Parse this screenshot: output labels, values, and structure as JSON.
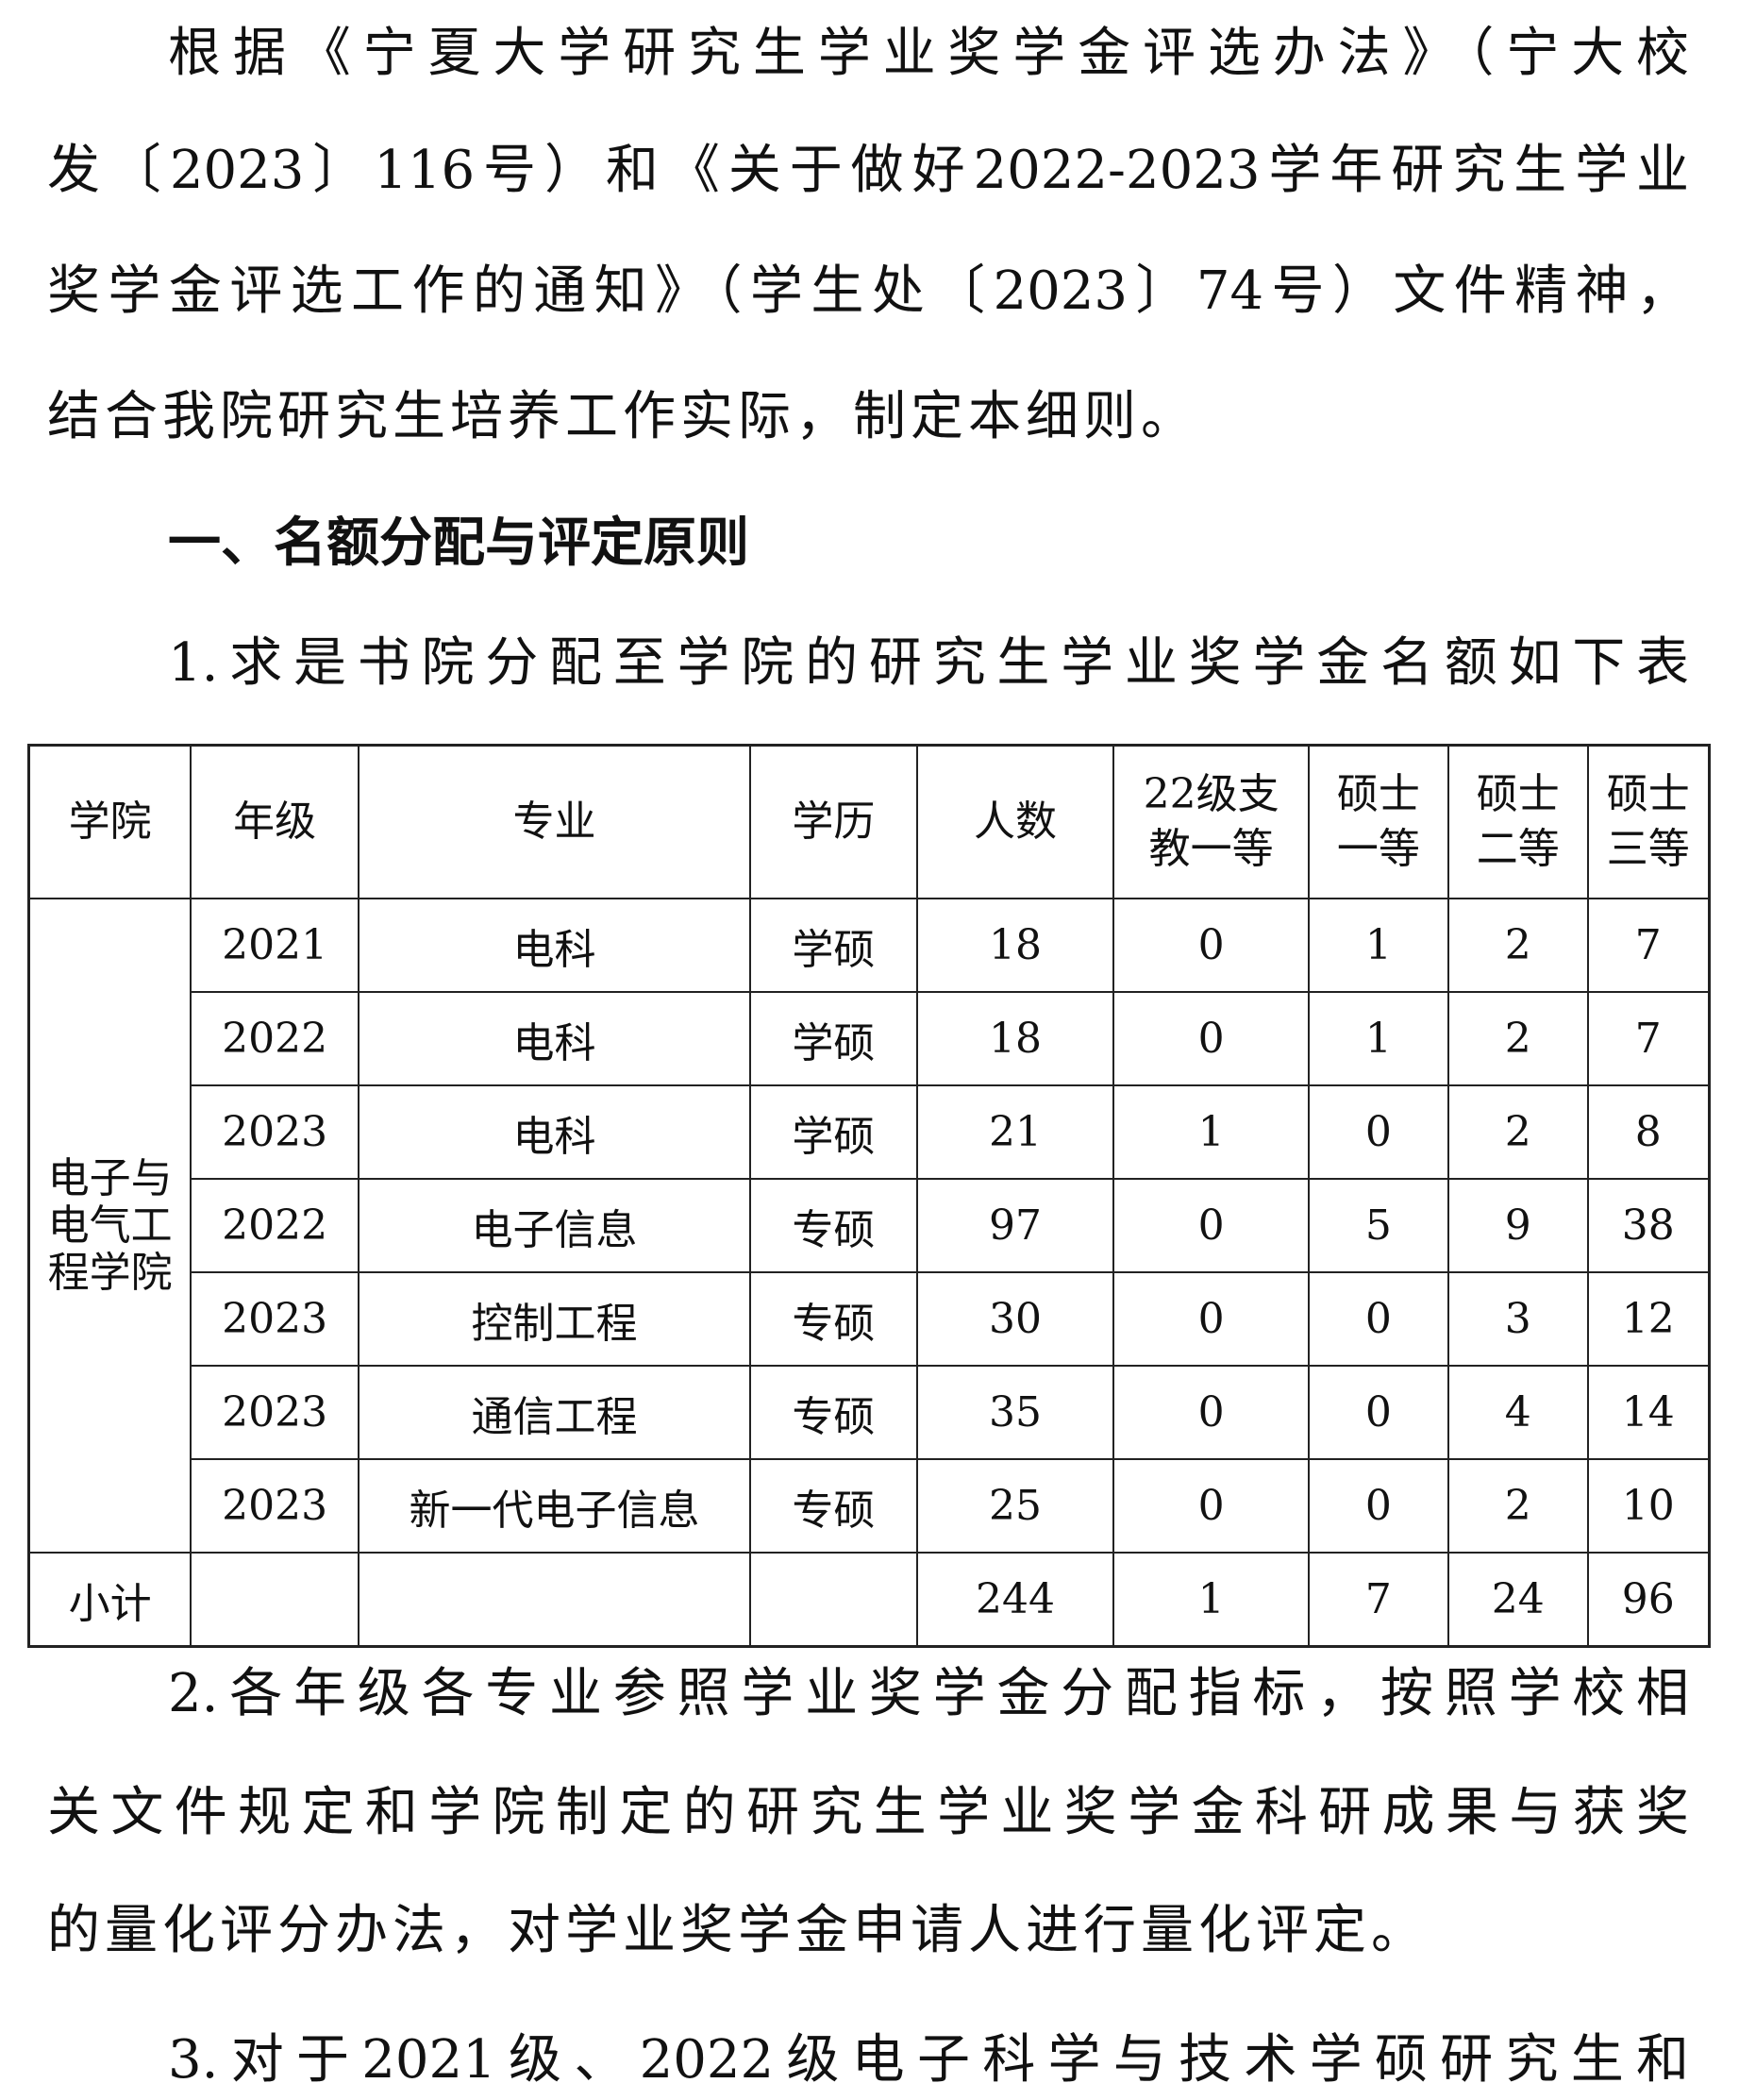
{
  "paragraphs": {
    "intro_lines": [
      "根据《宁夏大学研究生学业奖学金评选办法》（宁大校",
      "发〔2023〕116号）和《关于做好2022-2023学年研究生学业",
      "奖学金评选工作的通知》（学生处〔2023〕74号）文件精神，",
      "结合我院研究生培养工作实际，制定本细则。"
    ],
    "section_heading": "一、名额分配与评定原则",
    "item1": "1.求是书院分配至学院的研究生学业奖学金名额如下表",
    "item2_lines": [
      "2.各年级各专业参照学业奖学金分配指标，按照学校相",
      "关文件规定和学院制定的研究生学业奖学金科研成果与获奖",
      "的量化评分办法，对学业奖学金申请人进行量化评定。"
    ],
    "item3": "3.对于2021级、2022级电子科学与技术学硕研究生和"
  },
  "table": {
    "headers": [
      "学院",
      "年级",
      "专业",
      "学历",
      "人数",
      "22级支教一等",
      "硕士一等",
      "硕士二等",
      "硕士三等"
    ],
    "college": "电子与电气工程学院",
    "rows": [
      [
        "2021",
        "电科",
        "学硕",
        "18",
        "0",
        "1",
        "2",
        "7"
      ],
      [
        "2022",
        "电科",
        "学硕",
        "18",
        "0",
        "1",
        "2",
        "7"
      ],
      [
        "2023",
        "电科",
        "学硕",
        "21",
        "1",
        "0",
        "2",
        "8"
      ],
      [
        "2022",
        "电子信息",
        "专硕",
        "97",
        "0",
        "5",
        "9",
        "38"
      ],
      [
        "2023",
        "控制工程",
        "专硕",
        "30",
        "0",
        "0",
        "3",
        "12"
      ],
      [
        "2023",
        "通信工程",
        "专硕",
        "35",
        "0",
        "0",
        "4",
        "14"
      ],
      [
        "2023",
        "新一代电子信息",
        "专硕",
        "25",
        "0",
        "0",
        "2",
        "10"
      ]
    ],
    "subtotal": [
      "小计",
      "",
      "",
      "",
      "244",
      "1",
      "7",
      "24",
      "96"
    ]
  }
}
